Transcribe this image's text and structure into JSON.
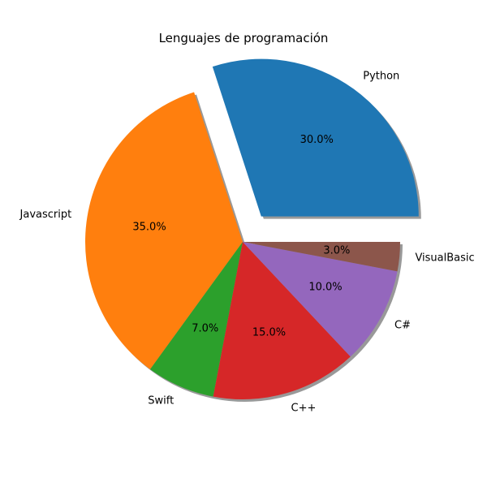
{
  "chart_data": {
    "type": "pie",
    "title": "Lenguajes de programación",
    "categories": [
      "Python",
      "Javascript",
      "Swift",
      "C++",
      "C#",
      "VisualBasic"
    ],
    "values": [
      30,
      35,
      7,
      15,
      10,
      3
    ],
    "percent_labels": [
      "30.0%",
      "35.0%",
      "7.0%",
      "15.0%",
      "10.0%",
      "3.0%"
    ],
    "colors": [
      "#1f77b4",
      "#ff7f0e",
      "#2ca02c",
      "#d62728",
      "#9467bd",
      "#8c564b"
    ],
    "explode": [
      0.2,
      0,
      0,
      0,
      0,
      0
    ],
    "shadow": true,
    "start_angle_deg": 0,
    "direction": "counterclockwise"
  }
}
